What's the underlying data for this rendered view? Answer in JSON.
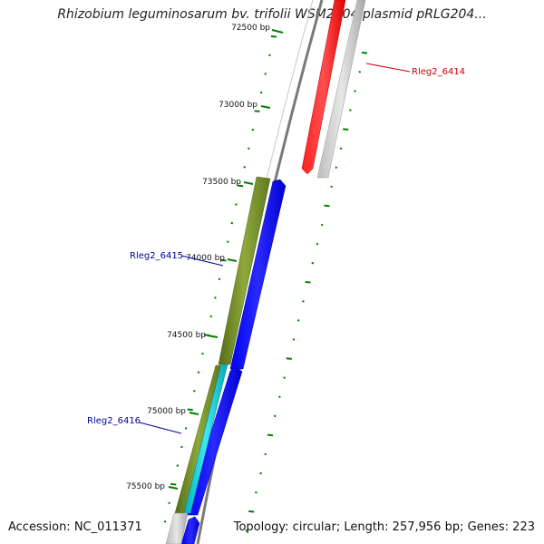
{
  "title": "Rhizobium leguminosarum bv. trifolii WSM2304 plasmid pRLG204...",
  "footer": {
    "accession": "Accession: NC_011371",
    "summary": "Topology: circular; Length: 257,956 bp; Genes: 223"
  },
  "ticks": [
    "72500 bp",
    "73000 bp",
    "73500 bp",
    "74000 bp",
    "74500 bp",
    "75000 bp",
    "75500 bp"
  ],
  "genes": [
    {
      "name": "Rleg2_6414",
      "color": "#cc0000"
    },
    {
      "name": "Rleg2_6415",
      "color": "#000099"
    },
    {
      "name": "Rleg2_6416",
      "color": "#000099"
    }
  ],
  "colors": {
    "forward_cds": "#ff0000",
    "reverse_cds": "#0000ff",
    "feature_green": "#6b8e23",
    "feature_cyan": "#00c8d2",
    "backbone": "#808080",
    "tick_green": "#008000"
  }
}
